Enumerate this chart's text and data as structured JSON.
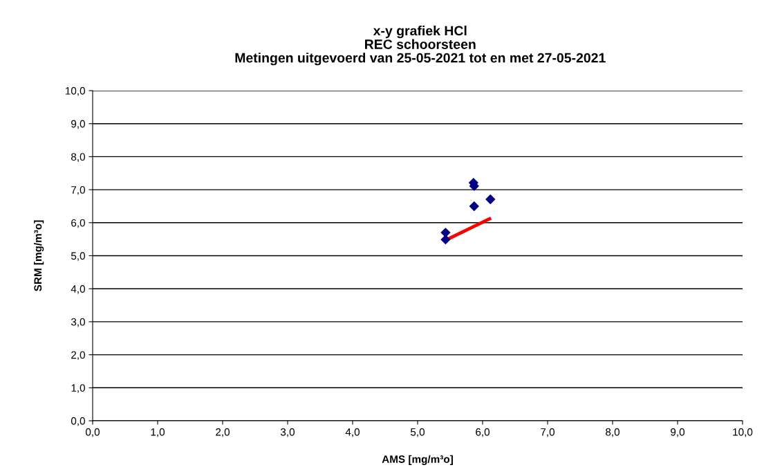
{
  "chart_data": {
    "type": "scatter",
    "title": "x-y grafiek HCl\nREC schoorsteen\nMetingen uitgevoerd van 25-05-2021 tot en met 27-05-2021",
    "xlabel": "AMS [mg/m³o]",
    "ylabel": "SRM [mg/m³o]",
    "series": [
      {
        "color": "#000080",
        "marker": "diamond",
        "x": [
          5.43,
          5.43,
          5.86,
          5.87,
          5.87,
          6.12
        ],
        "values": [
          5.7,
          5.49,
          7.21,
          7.11,
          6.5,
          6.71
        ]
      },
      {
        "type": "line",
        "color": "#ff0000",
        "marker": "none",
        "x": [
          5.43,
          6.13
        ],
        "values": [
          5.47,
          6.14
        ]
      }
    ],
    "xlim": [
      0,
      10
    ],
    "ylim": [
      0,
      10
    ],
    "xticks": [
      {
        "value": 0,
        "label": "0,0"
      },
      {
        "value": 1,
        "label": "1,0"
      },
      {
        "value": 2,
        "label": "2,0"
      },
      {
        "value": 3,
        "label": "3,0"
      },
      {
        "value": 4,
        "label": "4,0"
      },
      {
        "value": 5,
        "label": "5,0"
      },
      {
        "value": 6,
        "label": "6,0"
      },
      {
        "value": 7,
        "label": "7,0"
      },
      {
        "value": 8,
        "label": "8,0"
      },
      {
        "value": 9,
        "label": "9,0"
      },
      {
        "value": 10,
        "label": "10,0"
      }
    ],
    "yticks": [
      {
        "value": 0,
        "label": "0,0"
      },
      {
        "value": 1,
        "label": "1,0"
      },
      {
        "value": 2,
        "label": "2,0"
      },
      {
        "value": 3,
        "label": "3,0"
      },
      {
        "value": 4,
        "label": "4,0"
      },
      {
        "value": 5,
        "label": "5,0"
      },
      {
        "value": 6,
        "label": "6,0"
      },
      {
        "value": 7,
        "label": "7,0"
      },
      {
        "value": 8,
        "label": "8,0"
      },
      {
        "value": 9,
        "label": "9,0"
      },
      {
        "value": 10,
        "label": "10,0"
      }
    ],
    "grid": "y"
  }
}
